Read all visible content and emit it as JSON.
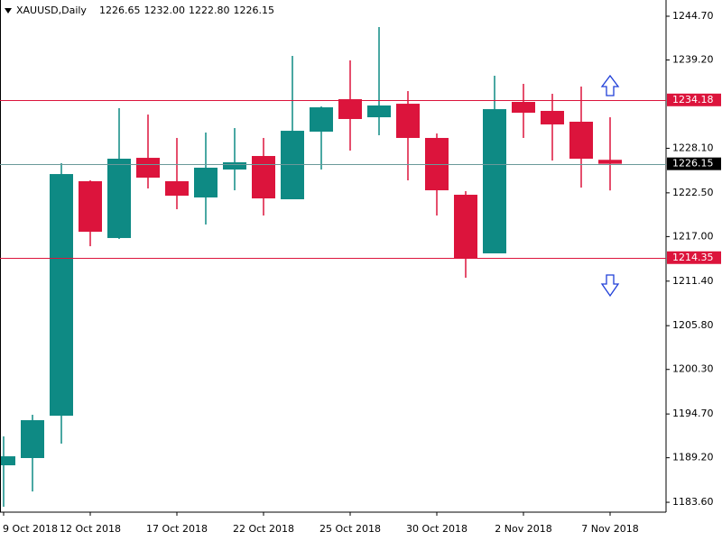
{
  "chart_data": {
    "type": "candlestick",
    "title": "XAUUSD,Daily",
    "title_values": [
      "1226.65",
      "1232.00",
      "1222.80",
      "1226.15"
    ],
    "categories": [
      "9 Oct 2018",
      null,
      null,
      "12 Oct 2018",
      null,
      null,
      "17 Oct 2018",
      null,
      null,
      "22 Oct 2018",
      null,
      null,
      "25 Oct 2018",
      null,
      null,
      "30 Oct 2018",
      null,
      null,
      "2 Nov 2018",
      null,
      null,
      "7 Nov 2018"
    ],
    "open": [
      1188.25,
      1189.16,
      1194.48,
      1223.96,
      1216.82,
      1226.9,
      1223.96,
      1221.92,
      1225.43,
      1227.13,
      1221.69,
      1230.19,
      1234.27,
      1232.0,
      1233.7,
      1229.4,
      1222.26,
      1214.89,
      1233.93,
      1232.8,
      1231.44,
      1226.65
    ],
    "high": [
      1191.88,
      1194.6,
      1226.22,
      1224.07,
      1233.14,
      1232.34,
      1229.4,
      1230.08,
      1230.64,
      1229.4,
      1239.71,
      1233.36,
      1239.15,
      1243.34,
      1235.29,
      1229.96,
      1222.71,
      1237.22,
      1236.2,
      1234.95,
      1235.86,
      1232.0
    ],
    "low": [
      1183.04,
      1184.96,
      1190.97,
      1215.79,
      1216.7,
      1223.05,
      1220.44,
      1218.52,
      1222.82,
      1219.65,
      1221.69,
      1225.43,
      1227.81,
      1229.74,
      1224.07,
      1219.65,
      1211.83,
      1214.89,
      1229.4,
      1226.56,
      1223.16,
      1222.8
    ],
    "close": [
      1189.38,
      1193.92,
      1224.86,
      1217.61,
      1226.79,
      1224.41,
      1222.14,
      1225.66,
      1226.34,
      1221.8,
      1230.3,
      1233.25,
      1231.78,
      1233.48,
      1229.4,
      1222.82,
      1214.32,
      1233.02,
      1232.57,
      1231.1,
      1226.79,
      1226.15
    ],
    "up_color": "#0e8a84",
    "down_color": "#dc143c",
    "ylim": [
      1182.36,
      1246.74
    ],
    "yticks": [
      {
        "value": 1244.7,
        "label": "1244.70"
      },
      {
        "value": 1239.2,
        "label": "1239.20"
      },
      {
        "value": 1228.1,
        "label": "1228.10"
      },
      {
        "value": 1222.5,
        "label": "1222.50"
      },
      {
        "value": 1217,
        "label": "1217.00"
      },
      {
        "value": 1211.4,
        "label": "1211.40"
      },
      {
        "value": 1205.8,
        "label": "1205.80"
      },
      {
        "value": 1200.3,
        "label": "1200.30"
      },
      {
        "value": 1194.7,
        "label": "1194.70"
      },
      {
        "value": 1189.2,
        "label": "1189.20"
      },
      {
        "value": 1183.6,
        "label": "1183.60"
      }
    ],
    "hlines": [
      {
        "value": 1234.18,
        "color": "#dc143c",
        "label_bg": "#dc143c"
      },
      {
        "value": 1226.15,
        "color": "#6a9a9a",
        "label_bg": "#000000"
      },
      {
        "value": 1214.35,
        "color": "#dc143c",
        "label_bg": "#dc143c"
      }
    ]
  }
}
